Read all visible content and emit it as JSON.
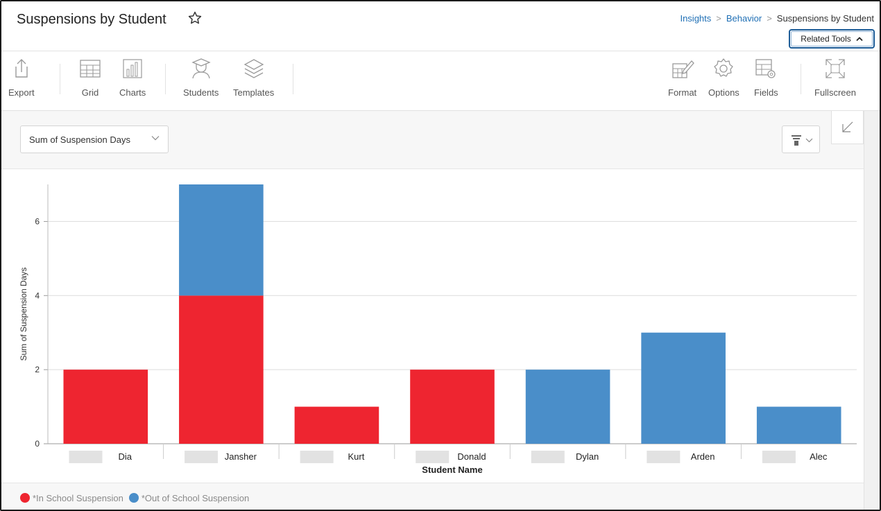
{
  "header": {
    "title": "Suspensions by Student",
    "breadcrumb": [
      "Insights",
      "Behavior",
      "Suspensions by Student"
    ],
    "related_tools_label": "Related Tools"
  },
  "toolbar": {
    "export": "Export",
    "grid": "Grid",
    "charts": "Charts",
    "students": "Students",
    "templates": "Templates",
    "format": "Format",
    "options": "Options",
    "fields": "Fields",
    "fullscreen": "Fullscreen"
  },
  "controls": {
    "measure_label": "Sum of Suspension Days"
  },
  "colors": {
    "in_school": "#ee2530",
    "out_of_school": "#4a8ec9",
    "link": "#1f6fb5"
  },
  "chart_data": {
    "type": "bar",
    "stacked": true,
    "categories": [
      "Dia",
      "Jansher",
      "Kurt",
      "Donald",
      "Dylan",
      "Arden",
      "Alec"
    ],
    "series": [
      {
        "name": "*In School Suspension",
        "color": "#ee2530",
        "values": [
          2,
          4,
          1,
          2,
          0,
          0,
          0
        ]
      },
      {
        "name": "*Out of School Suspension",
        "color": "#4a8ec9",
        "values": [
          0,
          3,
          0,
          0,
          2,
          3,
          1
        ]
      }
    ],
    "xlabel": "Student Name",
    "ylabel": "Sum of Suspension Days",
    "yticks": [
      0,
      2,
      4,
      6
    ],
    "ylim": [
      0,
      7
    ],
    "grid": true,
    "legend_position": "bottom-left"
  }
}
